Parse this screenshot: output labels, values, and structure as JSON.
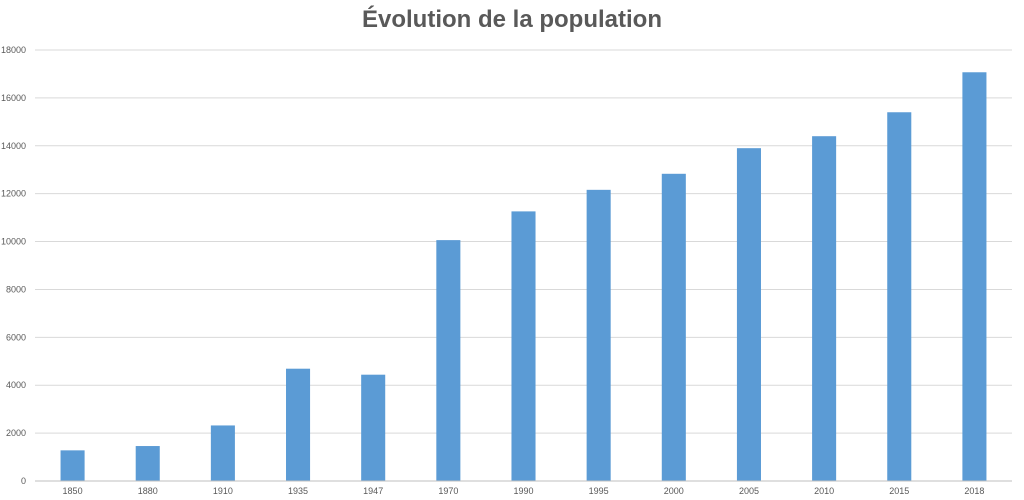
{
  "chart_data": {
    "type": "bar",
    "title": "Évolution de la population",
    "xlabel": "",
    "ylabel": "",
    "categories": [
      "1850",
      "1880",
      "1910",
      "1935",
      "1947",
      "1970",
      "1990",
      "1995",
      "2000",
      "2005",
      "2010",
      "2015",
      "2018"
    ],
    "values": [
      1280,
      1460,
      2320,
      4690,
      4440,
      10060,
      11260,
      12160,
      12830,
      13900,
      14400,
      15400,
      17070
    ],
    "ylim": [
      0,
      18000
    ],
    "yticks": [
      0,
      2000,
      4000,
      6000,
      8000,
      10000,
      12000,
      14000,
      16000,
      18000
    ],
    "grid": true,
    "legend": "none",
    "bar_color": "#5b9bd5",
    "grid_color": "#d9d9d9",
    "axis_color": "#bfbfbf",
    "text_color": "#595959"
  }
}
